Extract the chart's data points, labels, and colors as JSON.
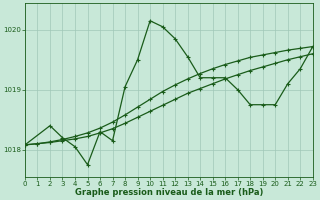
{
  "background_color": "#c8e8d8",
  "grid_color": "#a0c8b8",
  "line_color": "#1a5c1a",
  "xlabel": "Graphe pression niveau de la mer (hPa)",
  "xlim": [
    0,
    23
  ],
  "ylim": [
    1017.55,
    1020.45
  ],
  "yticks": [
    1018,
    1019,
    1020
  ],
  "xticks": [
    0,
    1,
    2,
    3,
    4,
    5,
    6,
    7,
    8,
    9,
    10,
    11,
    12,
    13,
    14,
    15,
    16,
    17,
    18,
    19,
    20,
    21,
    22,
    23
  ],
  "series": [
    {
      "x": [
        0,
        1,
        2,
        3,
        4,
        5,
        6,
        7,
        8,
        9,
        10,
        11,
        12,
        13,
        14,
        15,
        16,
        17,
        18,
        19,
        20,
        21,
        22,
        23
      ],
      "y": [
        1018.08,
        1018.1,
        1018.12,
        1018.15,
        1018.18,
        1018.22,
        1018.28,
        1018.35,
        1018.44,
        1018.54,
        1018.64,
        1018.74,
        1018.84,
        1018.94,
        1019.02,
        1019.1,
        1019.18,
        1019.25,
        1019.32,
        1019.38,
        1019.44,
        1019.5,
        1019.55,
        1019.6
      ]
    },
    {
      "x": [
        0,
        1,
        2,
        3,
        4,
        5,
        6,
        7,
        8,
        9,
        10,
        11,
        12,
        13,
        14,
        15,
        16,
        17,
        18,
        19,
        20,
        21,
        22,
        23
      ],
      "y": [
        1018.08,
        1018.1,
        1018.13,
        1018.17,
        1018.22,
        1018.28,
        1018.36,
        1018.46,
        1018.58,
        1018.71,
        1018.84,
        1018.97,
        1019.08,
        1019.18,
        1019.27,
        1019.35,
        1019.42,
        1019.48,
        1019.54,
        1019.58,
        1019.62,
        1019.66,
        1019.69,
        1019.72
      ]
    },
    {
      "x": [
        0,
        2,
        3,
        4,
        5,
        6,
        7,
        8,
        9,
        10,
        11,
        12,
        13,
        14,
        15,
        16,
        17,
        18,
        19,
        20,
        21,
        22,
        23
      ],
      "y": [
        1018.08,
        1018.4,
        1018.2,
        1018.05,
        1017.75,
        1018.3,
        1018.15,
        1019.05,
        1019.5,
        1020.15,
        1020.05,
        1019.85,
        1019.55,
        1019.2,
        1019.2,
        1019.2,
        1019.0,
        1018.75,
        1018.75,
        1018.75,
        1019.1,
        1019.35,
        1019.72
      ]
    }
  ],
  "marker": "+",
  "marker_size": 3.5,
  "markeredgewidth": 0.8,
  "linewidth": 0.9,
  "xlabel_fontsize": 6.0,
  "tick_labelsize": 5.0
}
